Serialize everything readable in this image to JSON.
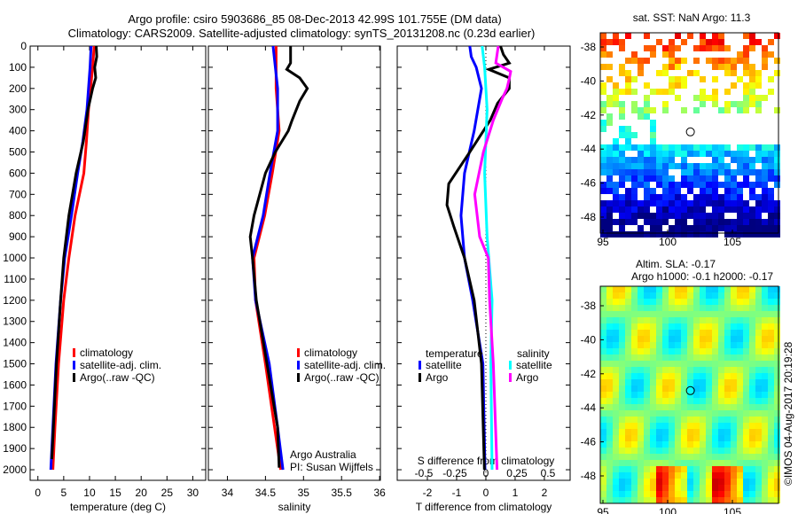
{
  "title_line1": "Argo profile: csiro 5903686_85 08-Dec-2013 42.99S 101.755E (DM data)",
  "title_line2": "Climatology: CARS2009. Satellite-adjusted climatology: synTS_20131208.nc (0.23d earlier)",
  "colors": {
    "climatology": "#ff0000",
    "satellite": "#0000ff",
    "argo": "#000000",
    "sal_satellite": "#00ffff",
    "sal_argo": "#ff00ff"
  },
  "chart_data": [
    {
      "type": "line",
      "xlabel": "temperature (deg C)",
      "xlim": [
        -1.5,
        32.5
      ],
      "ylim": [
        0,
        2050
      ],
      "xticks": [
        0,
        5,
        10,
        15,
        20,
        25,
        30
      ],
      "yticks": [
        0,
        100,
        200,
        300,
        400,
        500,
        600,
        700,
        800,
        900,
        1000,
        1100,
        1200,
        1300,
        1400,
        1500,
        1600,
        1700,
        1800,
        1900,
        2000
      ],
      "legend": [
        "climatology",
        "satellite-adj. clim.",
        "Argo(..raw -QC)"
      ],
      "series": [
        {
          "name": "climatology",
          "color": "#ff0000",
          "depth": [
            0,
            100,
            300,
            450,
            600,
            800,
            1000,
            1200,
            1500,
            1800,
            2000
          ],
          "values": [
            10.9,
            10.6,
            9.8,
            9.4,
            8.9,
            7.2,
            6.0,
            5.0,
            4.0,
            3.3,
            2.9
          ]
        },
        {
          "name": "satellite-adj. clim.",
          "color": "#0000ff",
          "depth": [
            0,
            100,
            300,
            450,
            600,
            800,
            1000,
            1200,
            1500,
            1800,
            2000
          ],
          "values": [
            10.3,
            10.1,
            9.5,
            8.7,
            7.7,
            6.5,
            5.2,
            4.4,
            3.5,
            2.9,
            2.5
          ]
        },
        {
          "name": "Argo(..raw -QC)",
          "color": "#000000",
          "depth": [
            0,
            50,
            100,
            150,
            200,
            300,
            450,
            600,
            800,
            1000,
            1200,
            1500,
            1800,
            1950
          ],
          "values": [
            11.3,
            11.4,
            11.0,
            11.2,
            10.6,
            9.7,
            8.8,
            7.4,
            6.0,
            5.0,
            4.4,
            3.6,
            3.0,
            2.7
          ]
        }
      ]
    },
    {
      "type": "line",
      "xlabel": "salinity",
      "xlim": [
        33.75,
        36.01
      ],
      "ylim": [
        0,
        2050
      ],
      "xticks": [
        34,
        34.5,
        35,
        35.5,
        36
      ],
      "legend": [
        "climatology",
        "satellite-adj. clim.",
        "Argo(..raw -QC)"
      ],
      "annotation": [
        "Argo Australia",
        "PI: Susan Wijffels"
      ],
      "series": [
        {
          "name": "climatology",
          "color": "#ff0000",
          "depth": [
            0,
            200,
            400,
            600,
            800,
            1000,
            1200,
            1500,
            1800,
            2000
          ],
          "values": [
            34.64,
            34.64,
            34.68,
            34.59,
            34.49,
            34.35,
            34.37,
            34.5,
            34.62,
            34.7
          ]
        },
        {
          "name": "satellite-adj. clim.",
          "color": "#0000ff",
          "depth": [
            0,
            200,
            400,
            600,
            800,
            1000,
            1200,
            1500,
            1800,
            2000
          ],
          "values": [
            34.6,
            34.66,
            34.66,
            34.56,
            34.47,
            34.33,
            34.37,
            34.55,
            34.66,
            34.73
          ]
        },
        {
          "name": "Argo(..raw -QC)",
          "color": "#000000",
          "depth": [
            0,
            80,
            110,
            150,
            200,
            260,
            350,
            400,
            500,
            600,
            800,
            900,
            1000,
            1200,
            1500,
            1800,
            1990
          ],
          "values": [
            34.83,
            34.83,
            34.78,
            34.95,
            35.05,
            34.95,
            34.85,
            34.8,
            34.63,
            34.5,
            34.35,
            34.3,
            34.33,
            34.38,
            34.52,
            34.66,
            34.68
          ]
        }
      ]
    },
    {
      "type": "line",
      "xlabel": "T difference from climatology",
      "x2label": "S difference from climatology",
      "xlim": [
        -3.03,
        2.88
      ],
      "ylim": [
        0,
        2050
      ],
      "xticks": [
        -2,
        -1,
        0,
        1,
        2
      ],
      "x2ticks": [
        "-0.5",
        "-0.25",
        "0",
        "0.25",
        "0.5"
      ],
      "legend_temperature": "temperature",
      "legend_salinity": "salinity",
      "legend_labels": [
        "satellite",
        "Argo",
        "satellite",
        "Argo"
      ],
      "series": [
        {
          "name": "temperature satellite",
          "color": "#0000ff",
          "kind": "T",
          "depth": [
            0,
            50,
            100,
            200,
            400,
            600,
            800,
            1000,
            1200,
            1500,
            2000
          ],
          "values": [
            -0.55,
            -0.5,
            -0.33,
            -0.15,
            -0.4,
            -0.73,
            -0.85,
            -0.73,
            -0.45,
            -0.1,
            -0.03
          ]
        },
        {
          "name": "temperature Argo",
          "color": "#000000",
          "kind": "T",
          "depth": [
            0,
            40,
            80,
            110,
            150,
            200,
            270,
            350,
            500,
            650,
            750,
            850,
            1000,
            1200,
            1500,
            2000
          ],
          "values": [
            0.5,
            0.6,
            0.8,
            0.1,
            0.8,
            0.8,
            0.4,
            0.15,
            -0.55,
            -1.27,
            -1.33,
            -1.1,
            -0.73,
            -0.4,
            -0.15,
            -0.05
          ]
        },
        {
          "name": "salinity satellite",
          "color": "#00ffff",
          "kind": "S",
          "depth": [
            0,
            100,
            300,
            600,
            900,
            1200,
            1500,
            2000
          ],
          "values": [
            -0.03,
            -0.01,
            0.01,
            -0.01,
            0.01,
            0.05,
            0.04,
            0.05
          ]
        },
        {
          "name": "salinity Argo",
          "color": "#ff00ff",
          "kind": "S",
          "depth": [
            0,
            80,
            120,
            150,
            200,
            250,
            350,
            500,
            700,
            900,
            1000,
            1200,
            1500,
            2000
          ],
          "values": [
            0.1,
            0.08,
            0.2,
            0.19,
            0.17,
            0.13,
            0.06,
            -0.02,
            -0.09,
            -0.05,
            0.02,
            0.03,
            0.06,
            0.09
          ]
        }
      ]
    }
  ],
  "map_sst": {
    "title": "sat. SST: NaN Argo: 11.3",
    "lat_ticks": [
      "-38",
      "-40",
      "-42",
      "-44",
      "-46",
      "-48"
    ],
    "lon_ticks": [
      "95",
      "100",
      "105"
    ],
    "float_lon": 101.755,
    "float_lat": -42.99
  },
  "map_sla": {
    "title_line1": "Altim. SLA: -0.17",
    "title_line2": "Argo h1000: -0.1 h2000: -0.17",
    "lat_ticks": [
      "-38",
      "-40",
      "-42",
      "-44",
      "-46",
      "-48"
    ],
    "lon_ticks": [
      "95",
      "100",
      "105"
    ],
    "float_lon": 101.755,
    "float_lat": -42.99
  },
  "credit": "©IMOS 04-Aug-2017 20:19:28"
}
